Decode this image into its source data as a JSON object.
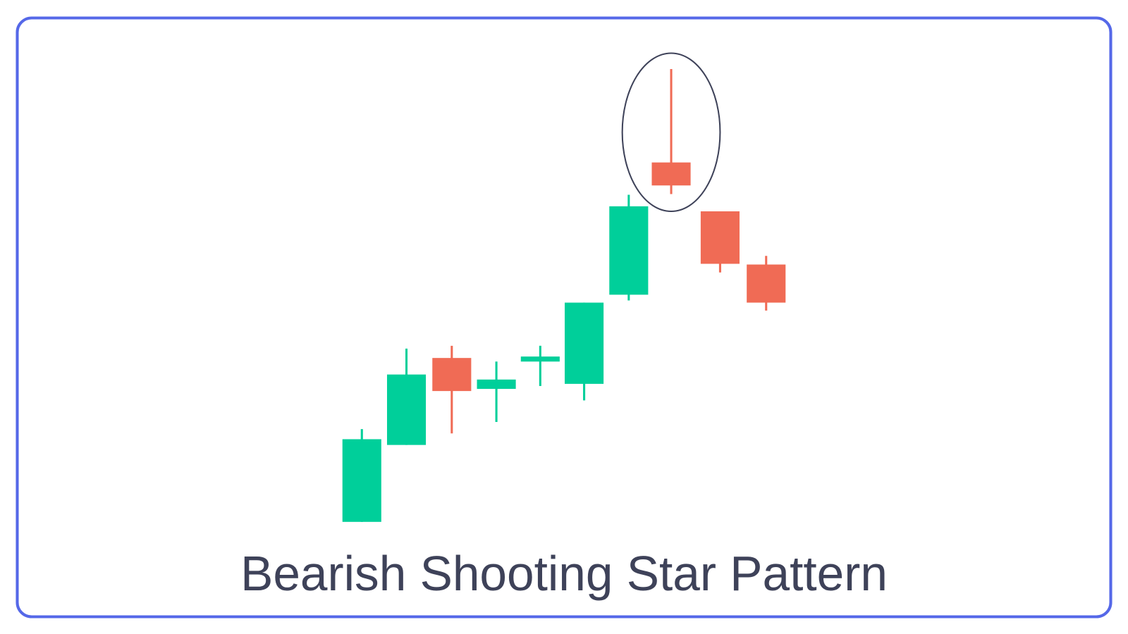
{
  "chart_data": {
    "type": "candlestick",
    "title": "Bearish Shooting Star Pattern",
    "axes_visible": false,
    "grid": false,
    "colors": {
      "bullish": "#00cf9a",
      "bearish": "#f06b55",
      "frame": "#5568e8",
      "highlight_ellipse": "#3e4259",
      "title": "#3e4259"
    },
    "highlight_index": 7,
    "candles": [
      {
        "open": 75,
        "high": 204,
        "low": 75,
        "close": 190
      },
      {
        "open": 182,
        "high": 316,
        "low": 182,
        "close": 280
      },
      {
        "open": 303,
        "high": 320,
        "low": 198,
        "close": 257
      },
      {
        "open": 260,
        "high": 298,
        "low": 214,
        "close": 273
      },
      {
        "open": 298,
        "high": 320,
        "low": 264,
        "close": 305
      },
      {
        "open": 267,
        "high": 380,
        "low": 244,
        "close": 380
      },
      {
        "open": 391,
        "high": 530,
        "low": 383,
        "close": 514
      },
      {
        "open": 575,
        "high": 705,
        "low": 531,
        "close": 543
      },
      {
        "open": 507,
        "high": 507,
        "low": 422,
        "close": 434
      },
      {
        "open": 433,
        "high": 445,
        "low": 369,
        "close": 380
      }
    ]
  }
}
